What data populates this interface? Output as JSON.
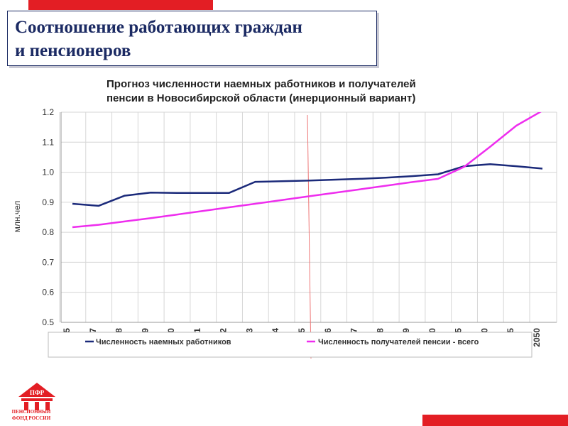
{
  "slide": {
    "title": "Соотношение работающих граждан\nи пенсионеров",
    "logo_text": "ПЕНСИОННЫЙ\nФОНД РОССИИ"
  },
  "colors": {
    "accent": "#e31e24",
    "navy": "#1b2a63",
    "series_workers": "#1b2a7a",
    "series_pensioners": "#ee2dee"
  },
  "chart_data": {
    "type": "line",
    "title": "Прогноз численности наемных работников и получателей\nпенсии в Новосибирской области (инерционный вариант)",
    "ylabel": "млн.чел",
    "xlabel": "",
    "ylim": [
      0.5,
      1.2
    ],
    "yticks": [
      "0.5",
      "0.6",
      "0.7",
      "0.8",
      "0.9",
      "1.0",
      "1.1",
      "1.2"
    ],
    "x_tick_labels": [
      "5",
      "7",
      "8",
      "9",
      "0",
      "1",
      "2",
      "3",
      "4",
      "5",
      "6",
      "7",
      "8",
      "9",
      "0",
      "5",
      "0",
      "5",
      "2050"
    ],
    "grid": true,
    "legend": "bottom",
    "series": [
      {
        "name": "Численность наемных работников",
        "values": [
          0.895,
          0.888,
          0.922,
          0.932,
          0.931,
          0.931,
          0.931,
          0.968,
          0.97,
          0.972,
          0.975,
          0.978,
          0.982,
          0.987,
          0.993,
          1.02,
          1.027,
          1.02,
          1.012
        ]
      },
      {
        "name": "Численность получателей  пенсии - всего",
        "values": [
          0.817,
          0.825,
          0.836,
          0.847,
          0.859,
          0.871,
          0.883,
          0.895,
          0.907,
          0.919,
          0.931,
          0.943,
          0.955,
          0.967,
          0.978,
          1.018,
          1.085,
          1.155,
          1.205
        ]
      }
    ]
  }
}
